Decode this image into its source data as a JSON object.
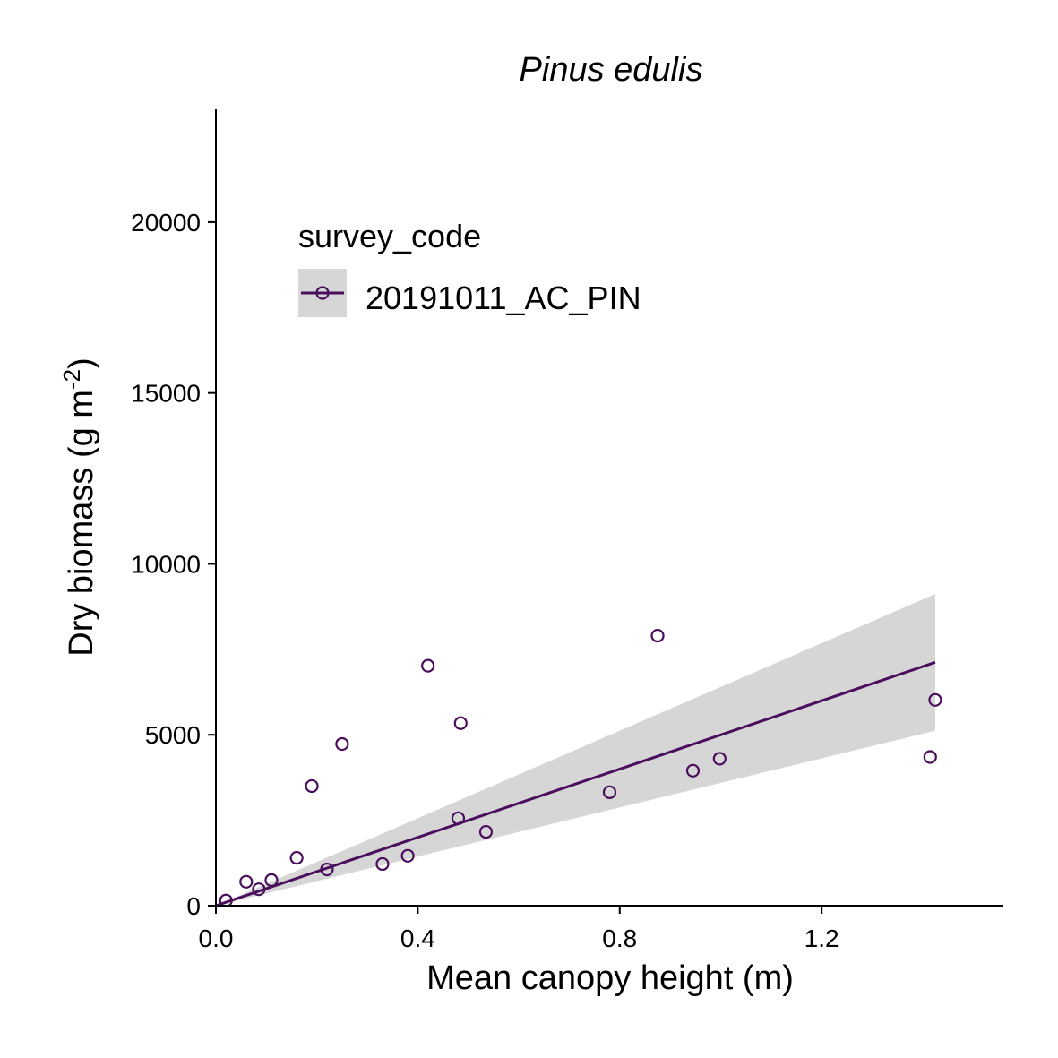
{
  "chart_data": {
    "type": "scatter",
    "title": "Pinus edulis",
    "xlabel": "Mean canopy height (m)",
    "ylabel": {
      "main": "Dry biomass (g m",
      "sup": "-2",
      "close": ")"
    },
    "xlim": [
      0,
      1.56
    ],
    "ylim": [
      0,
      23300
    ],
    "xticks": [
      0.0,
      0.4,
      0.8,
      1.2
    ],
    "xtick_labels": [
      "0.0",
      "0.4",
      "0.8",
      "1.2"
    ],
    "yticks": [
      0,
      5000,
      10000,
      15000,
      20000
    ],
    "ytick_labels": [
      "0",
      "5000",
      "10000",
      "15000",
      "20000"
    ],
    "grid": false,
    "legend": {
      "title": "survey_code",
      "position": "top-left",
      "entries": [
        "20191011_AC_PIN"
      ]
    },
    "series": [
      {
        "name": "20191011_AC_PIN",
        "color": "#4a0e5c",
        "points": [
          {
            "x": 0.02,
            "y": 150
          },
          {
            "x": 0.06,
            "y": 700
          },
          {
            "x": 0.085,
            "y": 480
          },
          {
            "x": 0.11,
            "y": 750
          },
          {
            "x": 0.16,
            "y": 1400
          },
          {
            "x": 0.19,
            "y": 3500
          },
          {
            "x": 0.22,
            "y": 1060
          },
          {
            "x": 0.25,
            "y": 4730
          },
          {
            "x": 0.33,
            "y": 1220
          },
          {
            "x": 0.38,
            "y": 1460
          },
          {
            "x": 0.42,
            "y": 7020
          },
          {
            "x": 0.48,
            "y": 2560
          },
          {
            "x": 0.485,
            "y": 5340
          },
          {
            "x": 0.535,
            "y": 2160
          },
          {
            "x": 0.78,
            "y": 3320
          },
          {
            "x": 0.875,
            "y": 7900
          },
          {
            "x": 0.945,
            "y": 3950
          },
          {
            "x": 0.998,
            "y": 4300
          },
          {
            "x": 1.415,
            "y": 4350
          },
          {
            "x": 1.425,
            "y": 6020
          }
        ]
      }
    ],
    "fit": {
      "x": [
        0.0,
        1.425
      ],
      "y": [
        0,
        7120
      ],
      "ci_lower": [
        0,
        5120
      ],
      "ci_upper": [
        0,
        9120
      ],
      "line_color": "#4a0e5c",
      "band_color": "#d6d6d6"
    }
  }
}
